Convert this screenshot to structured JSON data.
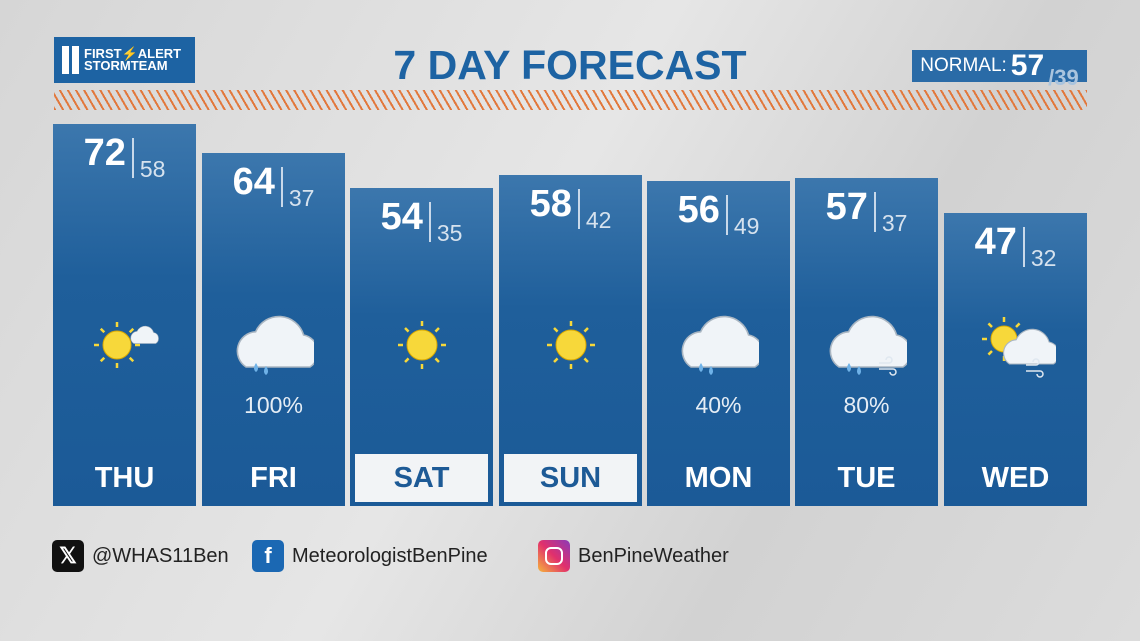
{
  "logo": {
    "line1": "FIRST⚡ALERT",
    "line2": "STORMTEAM"
  },
  "title": "7 DAY FORECAST",
  "normal": {
    "label": "NORMAL:",
    "high": "57",
    "low": "/39"
  },
  "days": [
    {
      "day": "THU",
      "high": "72",
      "low": "58",
      "icon": "sun-cloud-icon",
      "precip": "",
      "weekend": false
    },
    {
      "day": "FRI",
      "high": "64",
      "low": "37",
      "icon": "rain-cloud-icon",
      "precip": "100%",
      "weekend": false
    },
    {
      "day": "SAT",
      "high": "54",
      "low": "35",
      "icon": "sun-icon",
      "precip": "",
      "weekend": true
    },
    {
      "day": "SUN",
      "high": "58",
      "low": "42",
      "icon": "sun-icon",
      "precip": "",
      "weekend": true
    },
    {
      "day": "MON",
      "high": "56",
      "low": "49",
      "icon": "rain-cloud-icon",
      "precip": "40%",
      "weekend": false
    },
    {
      "day": "TUE",
      "high": "57",
      "low": "37",
      "icon": "rain-wind-cloud-icon",
      "precip": "80%",
      "weekend": false
    },
    {
      "day": "WED",
      "high": "47",
      "low": "32",
      "icon": "partly-cloudy-wind-icon",
      "precip": "",
      "weekend": false
    }
  ],
  "social": [
    {
      "icon": "x-icon",
      "handle": "@WHAS11Ben"
    },
    {
      "icon": "facebook-icon",
      "handle": "MeteorologistBenPine"
    },
    {
      "icon": "instagram-icon",
      "handle": "BenPineWeather"
    }
  ],
  "colors": {
    "brand": "#1d63a3",
    "stripe": "#e2783c"
  }
}
